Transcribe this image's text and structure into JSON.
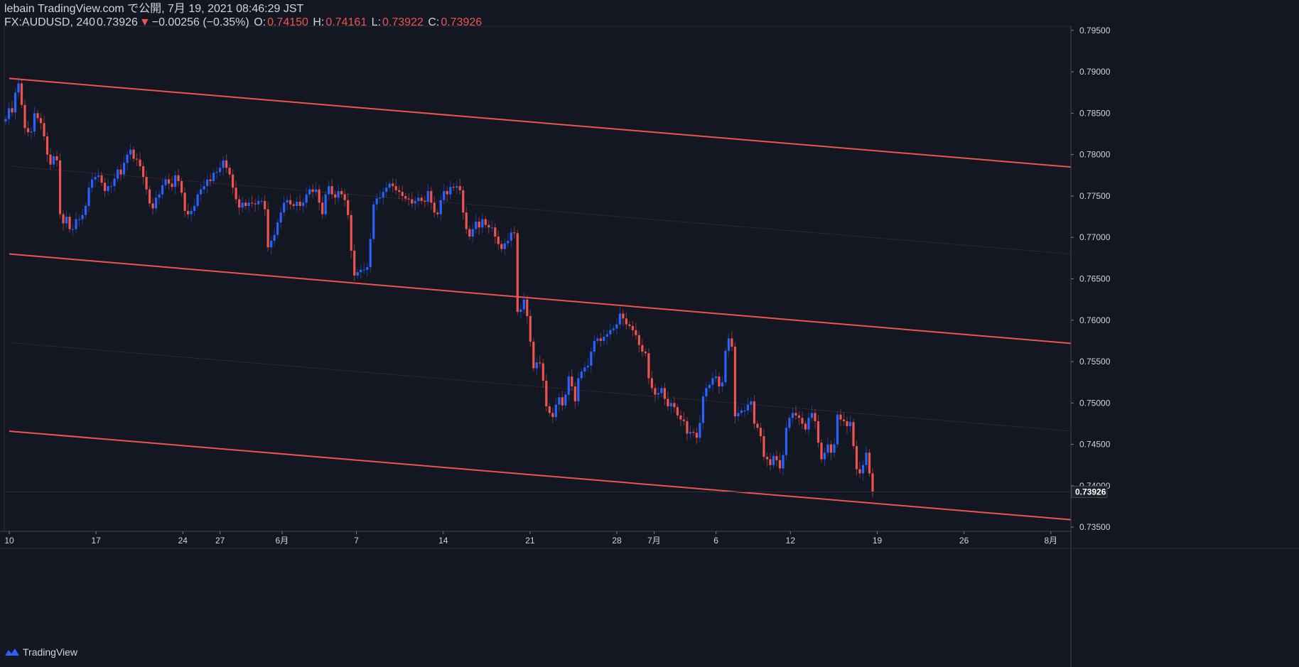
{
  "header": {
    "published": "lebain TradingView.com で公開, 7月 19, 2021 08:46:29 JST",
    "symbol": "FX:AUDUSD, 240",
    "last": "0.73926",
    "change_arrow": "▼",
    "change": "−0.00256 (−0.35%)",
    "open_label": "O:",
    "open": "0.74150",
    "high_label": "H:",
    "high": "0.74161",
    "low_label": "L:",
    "low": "0.73922",
    "close_label": "C:",
    "close": "0.73926"
  },
  "footer": {
    "brand": "TradingView",
    "logo_icon": "tradingview-logo-icon"
  },
  "colors": {
    "background": "#131722",
    "up": "#2962ff",
    "down": "#ef5350",
    "channel": "#ef5350",
    "axis_text": "#d1d4dc",
    "price_tag_bg": "#ef5350"
  },
  "chart_data": {
    "type": "candlestick",
    "symbol": "FX:AUDUSD",
    "interval": "240",
    "ylim": [
      0.7345,
      0.7955
    ],
    "y_ticks": [
      "0.79500",
      "0.79000",
      "0.78500",
      "0.78000",
      "0.77500",
      "0.77000",
      "0.76500",
      "0.76000",
      "0.75500",
      "0.75000",
      "0.74500",
      "0.74000",
      "0.73500"
    ],
    "x_ticks": [
      "10",
      "17",
      "24",
      "27",
      "6月",
      "7",
      "14",
      "21",
      "28",
      "7月",
      "6",
      "12",
      "19",
      "26",
      "8月"
    ],
    "x_tick_dates": [
      "2021-05-10",
      "2021-05-17",
      "2021-05-24",
      "2021-05-27",
      "2021-06-01",
      "2021-06-07",
      "2021-06-14",
      "2021-06-21",
      "2021-06-28",
      "2021-07-01",
      "2021-07-06",
      "2021-07-12",
      "2021-07-19",
      "2021-07-26",
      "2021-08-02"
    ],
    "last_price_label": "0.73926",
    "last_price": 0.73926,
    "channel_lines": [
      {
        "style": "solid",
        "from": [
          "2021-05-10",
          0.7892
        ],
        "to": [
          "2021-07-31",
          0.7785
        ]
      },
      {
        "style": "dotted",
        "from": [
          "2021-05-10",
          0.7786
        ],
        "to": [
          "2021-07-31",
          0.768
        ]
      },
      {
        "style": "solid",
        "from": [
          "2021-05-10",
          0.768
        ],
        "to": [
          "2021-07-31",
          0.7572
        ]
      },
      {
        "style": "dotted",
        "from": [
          "2021-05-10",
          0.7573
        ],
        "to": [
          "2021-07-31",
          0.7466
        ]
      },
      {
        "style": "solid",
        "from": [
          "2021-05-10",
          0.7466
        ],
        "to": [
          "2021-07-31",
          0.7359
        ]
      }
    ],
    "closes": [
      0.7843,
      0.7856,
      0.7851,
      0.7875,
      0.7886,
      0.786,
      0.7832,
      0.7827,
      0.7828,
      0.785,
      0.7844,
      0.7838,
      0.7822,
      0.78,
      0.7788,
      0.7798,
      0.7793,
      0.7728,
      0.7717,
      0.7725,
      0.771,
      0.771,
      0.7722,
      0.7722,
      0.7727,
      0.7738,
      0.776,
      0.777,
      0.7773,
      0.7775,
      0.7766,
      0.7756,
      0.7762,
      0.7762,
      0.7771,
      0.7782,
      0.7776,
      0.779,
      0.78,
      0.7806,
      0.7795,
      0.7794,
      0.7786,
      0.7773,
      0.7758,
      0.7741,
      0.7735,
      0.7748,
      0.7752,
      0.7763,
      0.777,
      0.7765,
      0.7761,
      0.7775,
      0.7768,
      0.7754,
      0.7732,
      0.7728,
      0.7732,
      0.7738,
      0.7752,
      0.7758,
      0.7762,
      0.777,
      0.7768,
      0.7778,
      0.7779,
      0.7784,
      0.7793,
      0.7784,
      0.7776,
      0.776,
      0.7746,
      0.7736,
      0.7742,
      0.7738,
      0.7742,
      0.7741,
      0.774,
      0.7744,
      0.7744,
      0.7734,
      0.7688,
      0.7696,
      0.7703,
      0.7718,
      0.773,
      0.7742,
      0.7745,
      0.774,
      0.7738,
      0.7743,
      0.7738,
      0.7742,
      0.7752,
      0.7758,
      0.7755,
      0.7758,
      0.7742,
      0.7728,
      0.7752,
      0.7762,
      0.7752,
      0.7748,
      0.7756,
      0.7752,
      0.7745,
      0.7727,
      0.7684,
      0.7654,
      0.7658,
      0.7661,
      0.7661,
      0.7664,
      0.7698,
      0.774,
      0.7747,
      0.7748,
      0.7755,
      0.776,
      0.7765,
      0.7762,
      0.7757,
      0.7755,
      0.775,
      0.7747,
      0.7746,
      0.7741,
      0.7744,
      0.7748,
      0.7744,
      0.7743,
      0.7756,
      0.7742,
      0.773,
      0.7728,
      0.7745,
      0.7756,
      0.7752,
      0.7761,
      0.776,
      0.7762,
      0.7757,
      0.773,
      0.771,
      0.7701,
      0.771,
      0.7719,
      0.7712,
      0.7722,
      0.7715,
      0.7712,
      0.7712,
      0.7701,
      0.7692,
      0.7686,
      0.7693,
      0.7696,
      0.7706,
      0.7705,
      0.761,
      0.7613,
      0.7625,
      0.7605,
      0.7574,
      0.7542,
      0.7549,
      0.7548,
      0.7527,
      0.7496,
      0.7488,
      0.7483,
      0.7498,
      0.7507,
      0.7497,
      0.751,
      0.7532,
      0.752,
      0.7502,
      0.753,
      0.7538,
      0.7543,
      0.7545,
      0.7562,
      0.7575,
      0.7578,
      0.7575,
      0.758,
      0.7583,
      0.7588,
      0.759,
      0.7595,
      0.7608,
      0.7602,
      0.7595,
      0.7593,
      0.7588,
      0.7582,
      0.757,
      0.7562,
      0.756,
      0.753,
      0.7518,
      0.751,
      0.7512,
      0.7518,
      0.7505,
      0.7496,
      0.75,
      0.7495,
      0.7485,
      0.748,
      0.7478,
      0.7463,
      0.7465,
      0.7464,
      0.7458,
      0.7476,
      0.7508,
      0.7518,
      0.7522,
      0.753,
      0.7532,
      0.752,
      0.7525,
      0.7563,
      0.7578,
      0.7568,
      0.7484,
      0.7488,
      0.7491,
      0.7491,
      0.7498,
      0.7502,
      0.7475,
      0.747,
      0.746,
      0.7435,
      0.7432,
      0.7425,
      0.7436,
      0.7431,
      0.7421,
      0.7437,
      0.747,
      0.7482,
      0.7488,
      0.7485,
      0.7482,
      0.7475,
      0.7468,
      0.7482,
      0.7488,
      0.7478,
      0.7452,
      0.7432,
      0.744,
      0.745,
      0.744,
      0.745,
      0.7486,
      0.748,
      0.7478,
      0.7472,
      0.7477,
      0.7448,
      0.742,
      0.7415,
      0.7425,
      0.744,
      0.7415,
      0.7393
    ]
  }
}
